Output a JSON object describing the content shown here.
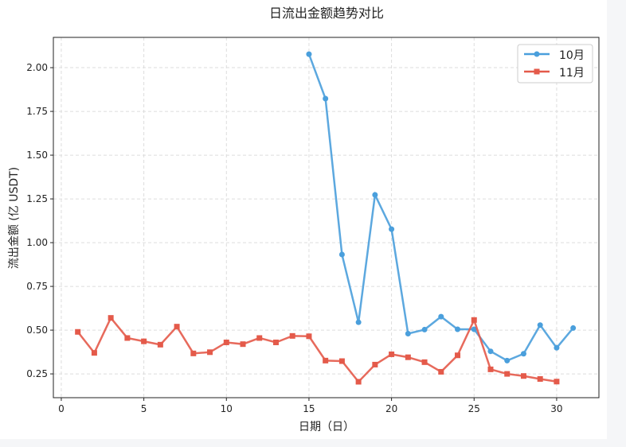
{
  "chart_data": {
    "type": "line",
    "title": "日流出金额趋势对比",
    "xlabel": "日期（日）",
    "ylabel": "流出金额 (亿 USDT)",
    "xlim": [
      -0.48,
      32.56
    ],
    "ylim": [
      0.114,
      2.173
    ],
    "xticks": [
      0,
      5,
      10,
      15,
      20,
      25,
      30
    ],
    "yticks": [
      0.25,
      0.5,
      0.75,
      1.0,
      1.25,
      1.5,
      1.75,
      2.0
    ],
    "grid": true,
    "legend_position": "top-right",
    "series": [
      {
        "name": "10月",
        "color": "#4a9fdc",
        "marker": "circle",
        "x": [
          15,
          16,
          17,
          18,
          19,
          20,
          21,
          22,
          23,
          24,
          25,
          26,
          27,
          28,
          29,
          30,
          31
        ],
        "y": [
          2.077,
          1.823,
          0.932,
          0.545,
          1.273,
          1.077,
          0.48,
          0.503,
          0.577,
          0.505,
          0.505,
          0.379,
          0.326,
          0.365,
          0.529,
          0.399,
          0.512
        ]
      },
      {
        "name": "11月",
        "color": "#e45a4a",
        "marker": "square",
        "x": [
          1,
          2,
          3,
          4,
          5,
          6,
          7,
          8,
          9,
          10,
          11,
          12,
          13,
          14,
          15,
          16,
          17,
          18,
          19,
          20,
          21,
          22,
          23,
          24,
          25,
          26,
          27,
          28,
          29,
          30
        ],
        "y": [
          0.49,
          0.37,
          0.57,
          0.455,
          0.436,
          0.417,
          0.52,
          0.367,
          0.374,
          0.43,
          0.42,
          0.455,
          0.43,
          0.467,
          0.465,
          0.326,
          0.323,
          0.205,
          0.303,
          0.362,
          0.345,
          0.317,
          0.262,
          0.356,
          0.558,
          0.276,
          0.25,
          0.238,
          0.221,
          0.206
        ]
      }
    ]
  }
}
